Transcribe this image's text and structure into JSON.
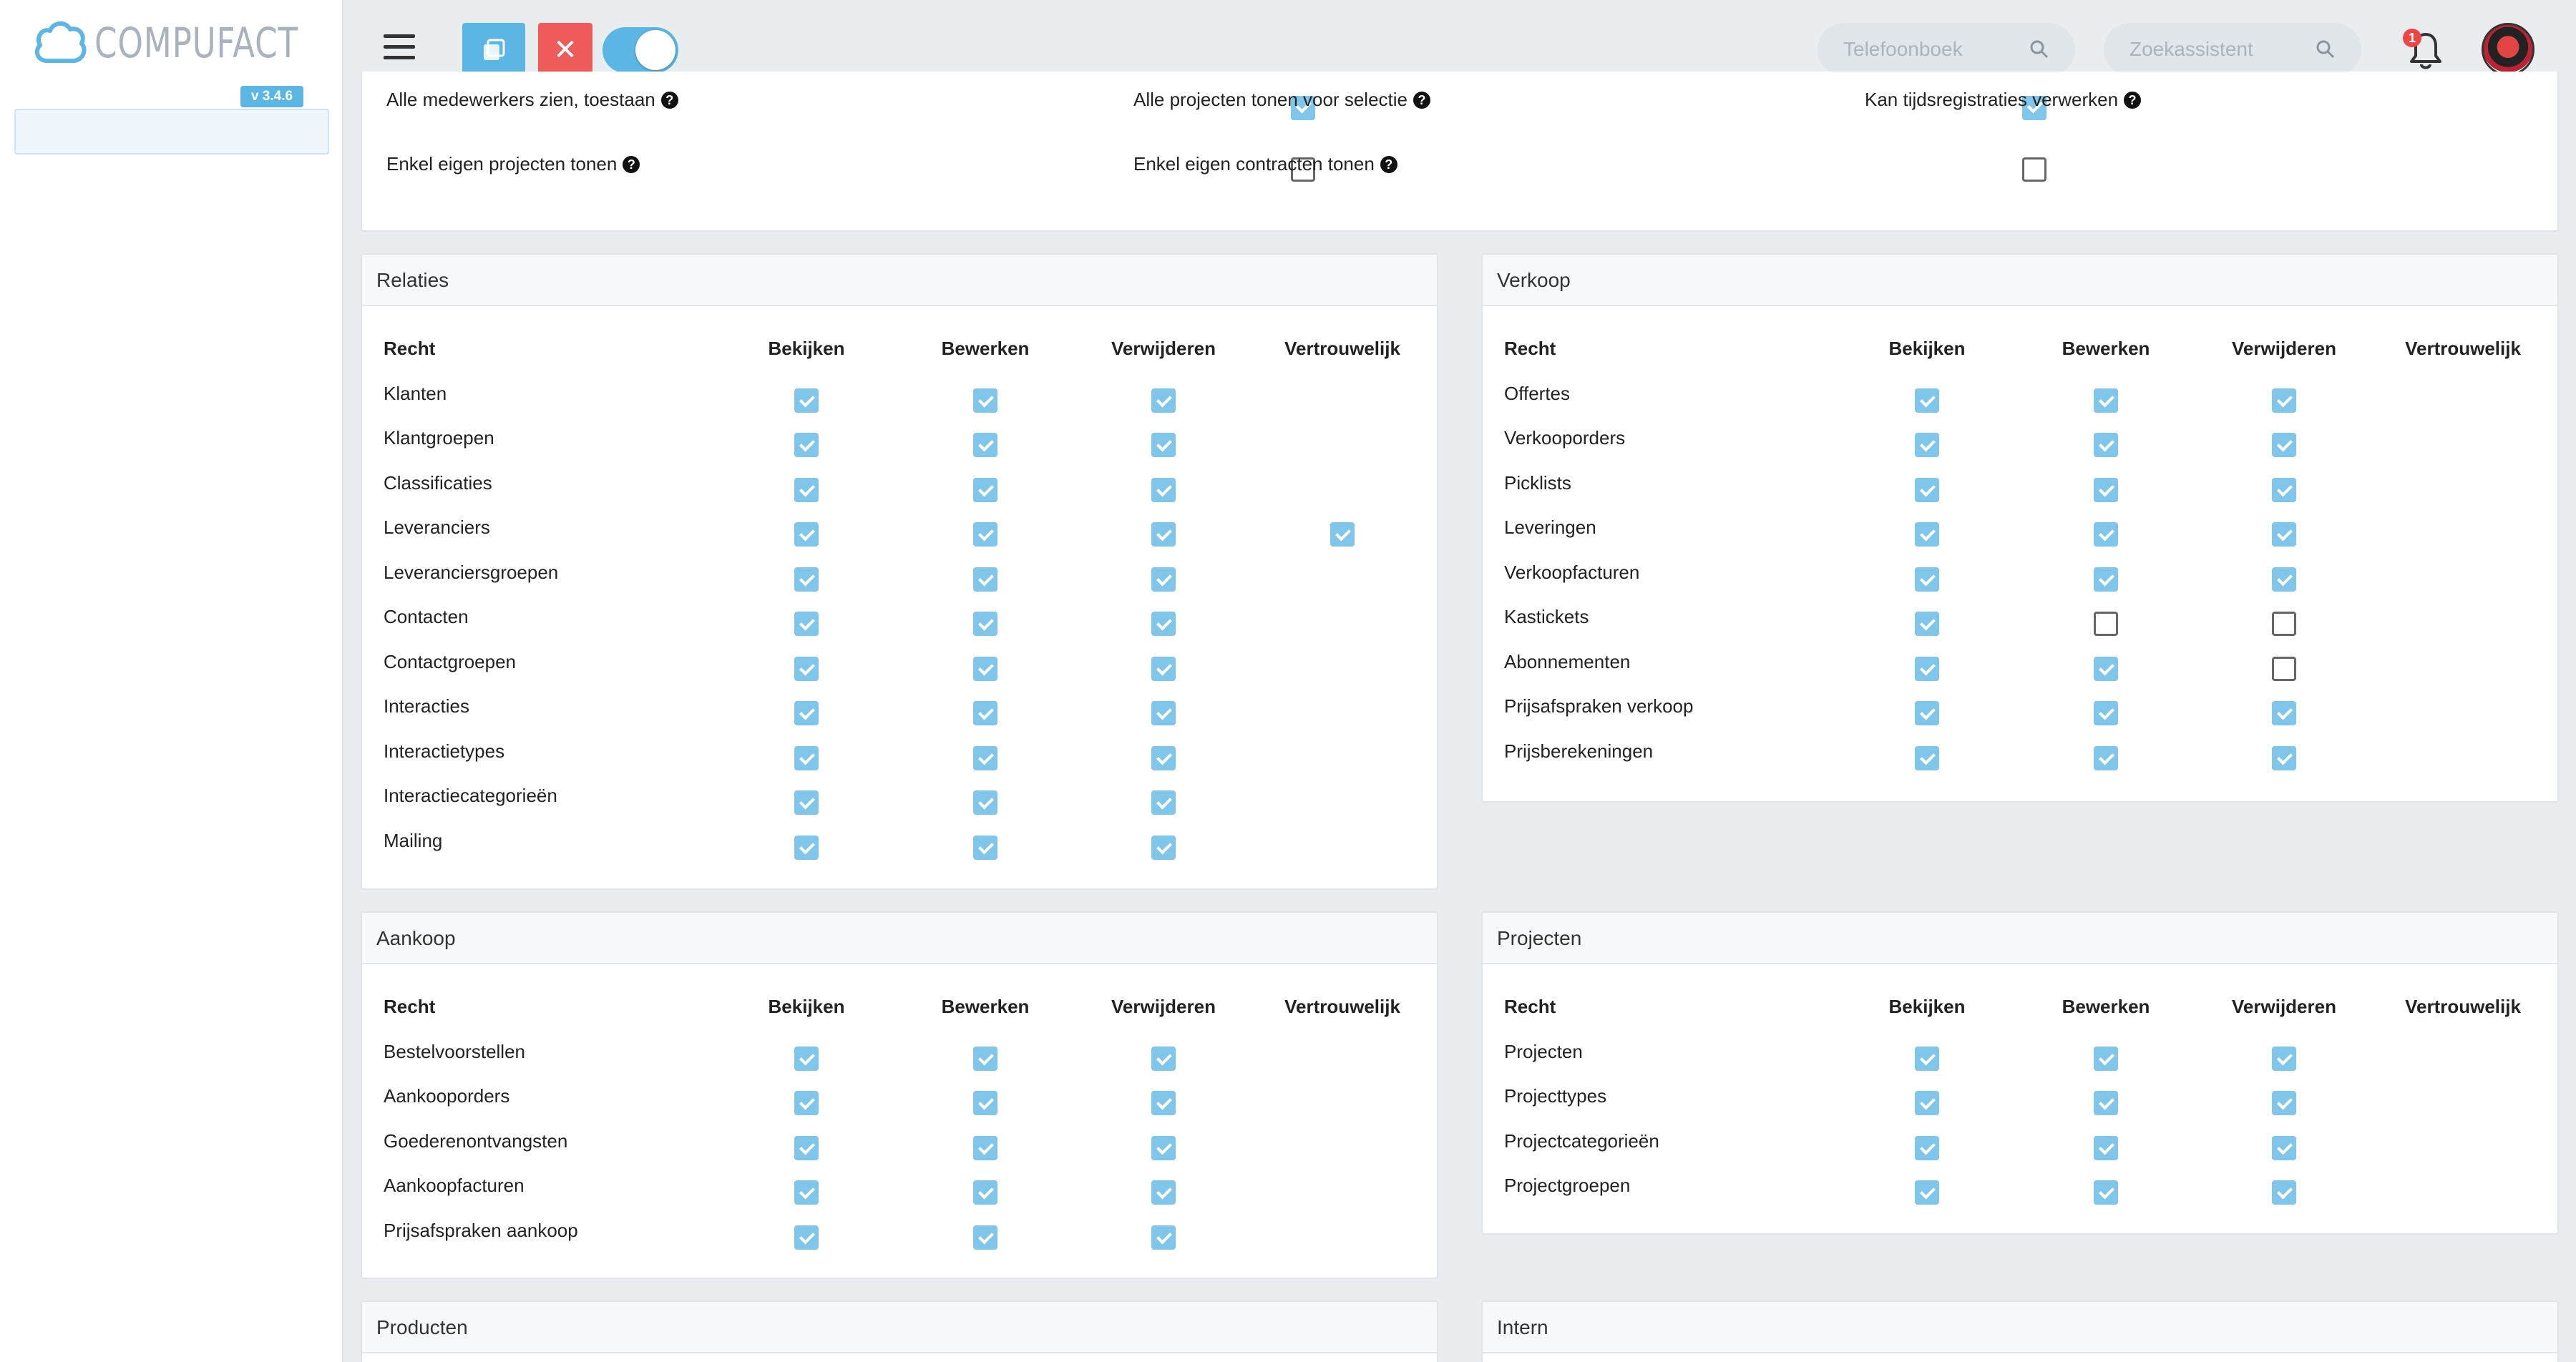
{
  "app": {
    "logo_text": "COMPUFACT",
    "version": "v 3.4.6"
  },
  "topbar": {
    "phonebook_placeholder": "Telefoonboek",
    "assistant_placeholder": "Zoekassistent",
    "notification_count": "1",
    "close_label": "✕"
  },
  "top_settings": [
    {
      "label": "Alle medewerkers zien, toestaan",
      "checked": true
    },
    {
      "label": "Alle projecten tonen voor selectie",
      "checked": true
    },
    {
      "label": "Kan tijdsregistraties verwerken",
      "checked": false
    },
    {
      "label": "Enkel eigen projecten tonen",
      "checked": false
    },
    {
      "label": "Enkel eigen contracten tonen",
      "checked": false
    }
  ],
  "columns": {
    "recht": "Recht",
    "bekijken": "Bekijken",
    "bewerken": "Bewerken",
    "verwijderen": "Verwijderen",
    "vertrouwelijk": "Vertrouwelijk"
  },
  "panels": {
    "relaties": {
      "title": "Relaties",
      "rows": [
        {
          "label": "Klanten",
          "v": [
            1,
            1,
            1,
            null
          ]
        },
        {
          "label": "Klantgroepen",
          "v": [
            1,
            1,
            1,
            null
          ]
        },
        {
          "label": "Classificaties",
          "v": [
            1,
            1,
            1,
            null
          ]
        },
        {
          "label": "Leveranciers",
          "v": [
            1,
            1,
            1,
            1
          ]
        },
        {
          "label": "Leveranciersgroepen",
          "v": [
            1,
            1,
            1,
            null
          ]
        },
        {
          "label": "Contacten",
          "v": [
            1,
            1,
            1,
            null
          ]
        },
        {
          "label": "Contactgroepen",
          "v": [
            1,
            1,
            1,
            null
          ]
        },
        {
          "label": "Interacties",
          "v": [
            1,
            1,
            1,
            null
          ]
        },
        {
          "label": "Interactietypes",
          "v": [
            1,
            1,
            1,
            null
          ]
        },
        {
          "label": "Interactiecategorieën",
          "v": [
            1,
            1,
            1,
            null
          ]
        },
        {
          "label": "Mailing",
          "v": [
            1,
            1,
            1,
            null
          ]
        }
      ]
    },
    "verkoop": {
      "title": "Verkoop",
      "rows": [
        {
          "label": "Offertes",
          "v": [
            1,
            1,
            1,
            null
          ]
        },
        {
          "label": "Verkooporders",
          "v": [
            1,
            1,
            1,
            null
          ]
        },
        {
          "label": "Picklists",
          "v": [
            1,
            1,
            1,
            null
          ]
        },
        {
          "label": "Leveringen",
          "v": [
            1,
            1,
            1,
            null
          ]
        },
        {
          "label": "Verkoopfacturen",
          "v": [
            1,
            1,
            1,
            null
          ]
        },
        {
          "label": "Kastickets",
          "v": [
            1,
            0,
            0,
            null
          ]
        },
        {
          "label": "Abonnementen",
          "v": [
            1,
            1,
            0,
            null
          ]
        },
        {
          "label": "Prijsafspraken verkoop",
          "v": [
            1,
            1,
            1,
            null
          ]
        },
        {
          "label": "Prijsberekeningen",
          "v": [
            1,
            1,
            1,
            null
          ]
        }
      ]
    },
    "aankoop": {
      "title": "Aankoop",
      "rows": [
        {
          "label": "Bestelvoorstellen",
          "v": [
            1,
            1,
            1,
            null
          ]
        },
        {
          "label": "Aankooporders",
          "v": [
            1,
            1,
            1,
            null
          ]
        },
        {
          "label": "Goederenontvangsten",
          "v": [
            1,
            1,
            1,
            null
          ]
        },
        {
          "label": "Aankoopfacturen",
          "v": [
            1,
            1,
            1,
            null
          ]
        },
        {
          "label": "Prijsafspraken aankoop",
          "v": [
            1,
            1,
            1,
            null
          ]
        }
      ]
    },
    "projecten": {
      "title": "Projecten",
      "rows": [
        {
          "label": "Projecten",
          "v": [
            1,
            1,
            1,
            null
          ]
        },
        {
          "label": "Projecttypes",
          "v": [
            1,
            1,
            1,
            null
          ]
        },
        {
          "label": "Projectcategorieën",
          "v": [
            1,
            1,
            1,
            null
          ]
        },
        {
          "label": "Projectgroepen",
          "v": [
            1,
            1,
            1,
            null
          ]
        }
      ]
    },
    "producten": {
      "title": "Producten"
    },
    "intern": {
      "title": "Intern"
    }
  },
  "colors": {
    "accent": "#5bb6e3",
    "danger": "#ef5b5b",
    "checkbox_on": "#7fc6ea"
  }
}
